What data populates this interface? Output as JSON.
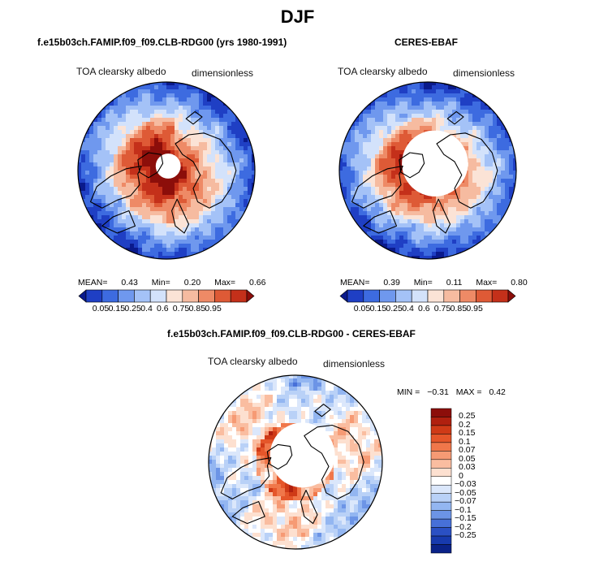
{
  "page": {
    "title": "DJF"
  },
  "chart_data": [
    {
      "type": "heatmap",
      "projection": "north-polar-stereographic",
      "title": "f.e15b03ch.FAMIP.f09_f09.CLB-RDG00 (yrs 1980-1991)",
      "variable": "TOA clearsky albedo",
      "units": "dimensionless",
      "stats": {
        "mean_label": "MEAN=",
        "mean": "0.43",
        "min_label": "Min=",
        "min": "0.20",
        "max_label": "Max=",
        "max": "0.66"
      },
      "colorbar": {
        "levels": [
          "0.05",
          "0.15",
          "0.25",
          "0.4",
          "0.6",
          "0.75",
          "0.85",
          "0.95"
        ],
        "colors": [
          "#0a1a8c",
          "#1f3fc4",
          "#3d6be0",
          "#6f98ee",
          "#a4c2f7",
          "#d3e2fb",
          "#fbe3d6",
          "#f6bba0",
          "#ee8a66",
          "#de5a36",
          "#c4301a",
          "#8c0e0a"
        ]
      },
      "pole_missing": "small"
    },
    {
      "type": "heatmap",
      "projection": "north-polar-stereographic",
      "title": "CERES-EBAF",
      "variable": "TOA clearsky albedo",
      "units": "dimensionless",
      "stats": {
        "mean_label": "MEAN=",
        "mean": "0.39",
        "min_label": "Min=",
        "min": "0.11",
        "max_label": "Max=",
        "max": "0.80"
      },
      "colorbar": {
        "levels": [
          "0.05",
          "0.15",
          "0.25",
          "0.4",
          "0.6",
          "0.75",
          "0.85",
          "0.95"
        ],
        "colors": [
          "#0a1a8c",
          "#1f3fc4",
          "#3d6be0",
          "#6f98ee",
          "#a4c2f7",
          "#d3e2fb",
          "#fbe3d6",
          "#f6bba0",
          "#ee8a66",
          "#de5a36",
          "#c4301a",
          "#8c0e0a"
        ]
      },
      "pole_missing": "large"
    },
    {
      "type": "heatmap",
      "projection": "north-polar-stereographic",
      "title": "f.e15b03ch.FAMIP.f09_f09.CLB-RDG00 - CERES-EBAF",
      "variable": "TOA clearsky albedo",
      "units": "dimensionless",
      "stats": {
        "min_label": "MIN =",
        "min": "−0.31",
        "max_label": "MAX =",
        "max": "0.42"
      },
      "colorbar": {
        "levels": [
          "0.25",
          "0.2",
          "0.15",
          "0.1",
          "0.07",
          "0.05",
          "0.03",
          "0",
          "−0.03",
          "−0.05",
          "−0.07",
          "−0.1",
          "−0.15",
          "−0.2",
          "−0.25"
        ],
        "colors": [
          "#8c0e0a",
          "#b0200f",
          "#cf3a17",
          "#e5562a",
          "#f0774a",
          "#f69a74",
          "#fabda0",
          "#fde0d0",
          "#ffffff",
          "#dbe7fb",
          "#b9d1f7",
          "#93b6f1",
          "#6c94e6",
          "#4770d8",
          "#2a50c4",
          "#173aae",
          "#0a2288"
        ]
      },
      "pole_missing": "large"
    }
  ]
}
